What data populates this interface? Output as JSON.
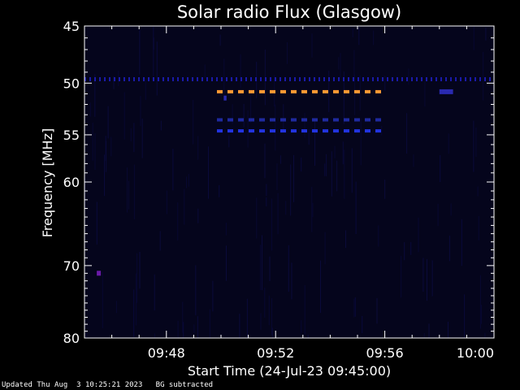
{
  "chart_data": {
    "type": "heatmap",
    "title": "Solar radio Flux (Glasgow)",
    "xlabel": "Start Time (24-Jul-23 09:45:00)",
    "ylabel": "Frequency [MHz]",
    "x_unit": "minutes after 09:45:00",
    "xlim": [
      0,
      15
    ],
    "ylim": [
      45,
      80
    ],
    "y_scale": "log",
    "x_ticks": [
      {
        "value": 3,
        "label": "09:48"
      },
      {
        "value": 7,
        "label": "09:52"
      },
      {
        "value": 11,
        "label": "09:56"
      },
      {
        "value": 15,
        "label": "10:00"
      }
    ],
    "y_ticks": [
      {
        "value": 45,
        "label": "45"
      },
      {
        "value": 50,
        "label": "50"
      },
      {
        "value": 55,
        "label": "55"
      },
      {
        "value": 60,
        "label": "60"
      },
      {
        "value": 70,
        "label": "70"
      },
      {
        "value": 80,
        "label": "80"
      }
    ],
    "background_bands": [
      {
        "freq": 49.6,
        "t_start": 0,
        "t_end": 15,
        "color": "#1a1aa8"
      }
    ],
    "features": [
      {
        "freq": 50.8,
        "t_start": 4.85,
        "t_end": 10.95,
        "color": "#ff9933",
        "dashed": true
      },
      {
        "freq": 53.5,
        "t_start": 4.85,
        "t_end": 10.95,
        "color": "#1f2aa0",
        "dashed": true
      },
      {
        "freq": 54.6,
        "t_start": 4.85,
        "t_end": 10.95,
        "color": "#2233e0",
        "dashed": true
      },
      {
        "freq": 51.4,
        "t_start": 5.1,
        "t_end": 5.2,
        "color": "#2a2ab0",
        "dashed": false
      },
      {
        "freq": 50.8,
        "t_start": 13.0,
        "t_end": 13.5,
        "color": "#2a2ab0",
        "dashed": false
      },
      {
        "freq": 71.0,
        "t_start": 0.45,
        "t_end": 0.6,
        "color": "#6a1aa8",
        "dashed": false
      }
    ],
    "colors": {
      "background": "#000000",
      "plot_noise": "#05051c",
      "axes": "#ffffff"
    }
  },
  "footer": {
    "updated": "Updated Thu Aug  3 10:25:21 2023",
    "note": "BG subtracted"
  }
}
